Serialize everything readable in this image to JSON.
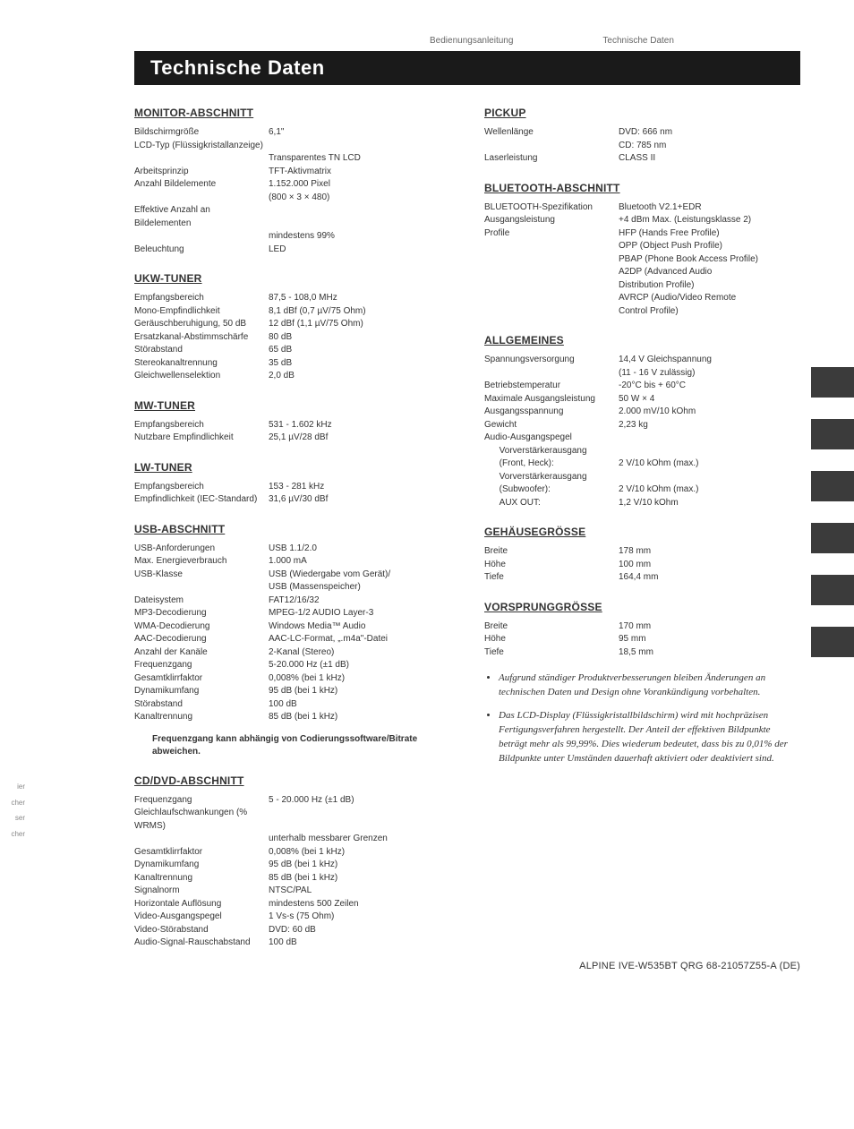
{
  "header": {
    "left": "Bedienungsanleitung",
    "right": "Technische Daten"
  },
  "title": "Technische Daten",
  "footer": "ALPINE IVE-W535BT QRG 68-21057Z55-A (DE)",
  "left_clips": [
    "ier",
    "cher",
    "ser",
    "cher"
  ],
  "left_column": [
    {
      "heading": "MONITOR-ABSCHNITT",
      "rows": [
        {
          "l": "Bildschirmgröße",
          "v": "6,1\""
        },
        {
          "l": "LCD-Typ (Flüssigkristallanzeige)",
          "v": ""
        },
        {
          "l": "",
          "v": "Transparentes TN LCD"
        },
        {
          "l": "Arbeitsprinzip",
          "v": "TFT-Aktivmatrix"
        },
        {
          "l": "Anzahl Bildelemente",
          "v": "1.152.000 Pixel"
        },
        {
          "l": "",
          "v": "(800 × 3 × 480)"
        },
        {
          "l": "Effektive Anzahl an Bildelementen",
          "v": ""
        },
        {
          "l": "",
          "v": "mindestens 99%"
        },
        {
          "l": "Beleuchtung",
          "v": "LED"
        }
      ]
    },
    {
      "heading": "UKW-TUNER",
      "rows": [
        {
          "l": "Empfangsbereich",
          "v": "87,5 - 108,0 MHz"
        },
        {
          "l": "Mono-Empfindlichkeit",
          "v": "8,1 dBf (0,7 µV/75 Ohm)"
        },
        {
          "l": "Geräuschberuhigung, 50 dB",
          "v": "12 dBf (1,1 µV/75 Ohm)"
        },
        {
          "l": "Ersatzkanal-Abstimmschärfe",
          "v": "80 dB"
        },
        {
          "l": "Störabstand",
          "v": "65 dB"
        },
        {
          "l": "Stereokanaltrennung",
          "v": "35 dB"
        },
        {
          "l": "Gleichwellenselektion",
          "v": "2,0 dB"
        }
      ]
    },
    {
      "heading": "MW-TUNER",
      "rows": [
        {
          "l": "Empfangsbereich",
          "v": "531 - 1.602 kHz"
        },
        {
          "l": "Nutzbare Empfindlichkeit",
          "v": "25,1 µV/28 dBf"
        }
      ]
    },
    {
      "heading": "LW-TUNER",
      "rows": [
        {
          "l": "Empfangsbereich",
          "v": "153 - 281 kHz"
        },
        {
          "l": "Empfindlichkeit (IEC-Standard)",
          "v": "31,6 µV/30 dBf"
        }
      ]
    },
    {
      "heading": "USB-ABSCHNITT",
      "rows": [
        {
          "l": "USB-Anforderungen",
          "v": "USB 1.1/2.0"
        },
        {
          "l": "Max. Energieverbrauch",
          "v": "1.000 mA"
        },
        {
          "l": "USB-Klasse",
          "v": "USB (Wiedergabe vom Gerät)/"
        },
        {
          "l": "",
          "v": "USB (Massenspeicher)"
        },
        {
          "l": "Dateisystem",
          "v": "FAT12/16/32"
        },
        {
          "l": "MP3-Decodierung",
          "v": "MPEG-1/2 AUDIO Layer-3"
        },
        {
          "l": "WMA-Decodierung",
          "v": "Windows Media™ Audio"
        },
        {
          "l": "AAC-Decodierung",
          "v": "AAC-LC-Format, „.m4a\"-Datei"
        },
        {
          "l": "Anzahl der Kanäle",
          "v": "2-Kanal (Stereo)"
        },
        {
          "l": "Frequenzgang",
          "v": "5-20.000 Hz (±1 dB)"
        },
        {
          "l": "Gesamtklirrfaktor",
          "v": "0,008% (bei 1 kHz)"
        },
        {
          "l": "Dynamikumfang",
          "v": "95 dB (bei 1 kHz)"
        },
        {
          "l": "Störabstand",
          "v": "100 dB"
        },
        {
          "l": "Kanaltrennung",
          "v": "85 dB (bei 1 kHz)"
        }
      ],
      "note": "Frequenzgang kann abhängig von Codierungssoftware/Bitrate abweichen."
    },
    {
      "heading": "CD/DVD-ABSCHNITT",
      "rows": [
        {
          "l": "Frequenzgang",
          "v": "5 - 20.000 Hz (±1 dB)"
        },
        {
          "l": "Gleichlaufschwankungen (% WRMS)",
          "v": ""
        },
        {
          "l": "",
          "v": "unterhalb messbarer Grenzen"
        },
        {
          "l": "Gesamtklirrfaktor",
          "v": "0,008% (bei 1 kHz)"
        },
        {
          "l": "Dynamikumfang",
          "v": "95 dB (bei 1 kHz)"
        },
        {
          "l": "Kanaltrennung",
          "v": "85 dB (bei 1 kHz)"
        },
        {
          "l": "Signalnorm",
          "v": "NTSC/PAL"
        },
        {
          "l": "Horizontale Auflösung",
          "v": "mindestens 500 Zeilen"
        },
        {
          "l": "Video-Ausgangspegel",
          "v": "1 Vs-s (75 Ohm)"
        },
        {
          "l": "Video-Störabstand",
          "v": "DVD: 60 dB"
        },
        {
          "l": "Audio-Signal-Rauschabstand",
          "v": "100 dB"
        }
      ]
    }
  ],
  "right_column": [
    {
      "heading": "PICKUP",
      "rows": [
        {
          "l": "Wellenlänge",
          "v": "DVD: 666 nm"
        },
        {
          "l": "",
          "v": "CD: 785 nm"
        },
        {
          "l": "Laserleistung",
          "v": "CLASS II"
        }
      ]
    },
    {
      "heading": "BLUETOOTH-ABSCHNITT",
      "rows": [
        {
          "l": "BLUETOOTH-Spezifikation",
          "v": "Bluetooth V2.1+EDR"
        },
        {
          "l": "Ausgangsleistung",
          "v": "+4 dBm Max. (Leistungsklasse 2)"
        },
        {
          "l": "Profile",
          "v": "HFP (Hands Free Profile)"
        },
        {
          "l": "",
          "v": "OPP (Object Push Profile)"
        },
        {
          "l": "",
          "v": "PBAP (Phone Book Access Profile)"
        },
        {
          "l": "",
          "v": "A2DP (Advanced Audio"
        },
        {
          "l": "",
          "v": "Distribution Profile)"
        },
        {
          "l": "",
          "v": "AVRCP (Audio/Video Remote"
        },
        {
          "l": "",
          "v": "Control Profile)"
        }
      ]
    },
    {
      "heading": "ALLGEMEINES",
      "rows": [
        {
          "l": "Spannungsversorgung",
          "v": "14,4 V Gleichspannung"
        },
        {
          "l": "",
          "v": "(11 - 16 V zulässig)"
        },
        {
          "l": "Betriebstemperatur",
          "v": "-20°C bis + 60°C"
        },
        {
          "l": "Maximale Ausgangsleistung",
          "v": "50 W × 4"
        },
        {
          "l": "Ausgangsspannung",
          "v": "2.000 mV/10 kOhm"
        },
        {
          "l": "Gewicht",
          "v": "2,23 kg"
        },
        {
          "l": "Audio-Ausgangspegel",
          "v": ""
        },
        {
          "l": "   Vorverstärkerausgang",
          "v": ""
        },
        {
          "l": "   (Front, Heck):",
          "v": "2 V/10 kOhm (max.)"
        },
        {
          "l": "   Vorverstärkerausgang",
          "v": ""
        },
        {
          "l": "   (Subwoofer):",
          "v": "2 V/10 kOhm (max.)"
        },
        {
          "l": "   AUX OUT:",
          "v": "1,2 V/10 kOhm"
        }
      ]
    },
    {
      "heading": "GEHÄUSEGRÖSSE",
      "rows": [
        {
          "l": "Breite",
          "v": "178 mm"
        },
        {
          "l": "Höhe",
          "v": "100 mm"
        },
        {
          "l": "Tiefe",
          "v": "164,4 mm"
        }
      ]
    },
    {
      "heading": "VORSPRUNGGRÖSSE",
      "rows": [
        {
          "l": "Breite",
          "v": "170 mm"
        },
        {
          "l": "Höhe",
          "v": "95 mm"
        },
        {
          "l": "Tiefe",
          "v": "18,5 mm"
        }
      ]
    }
  ],
  "footnotes": [
    "Aufgrund ständiger Produktverbesserungen bleiben Änderungen an technischen Daten und Design ohne Vorankündigung vorbehalten.",
    "Das LCD-Display (Flüssigkristallbildschirm) wird mit hochpräzisen Fertigungsverfahren hergestellt. Der Anteil der effektiven Bildpunkte beträgt mehr als 99,99%. Dies wiederum bedeutet, dass bis zu 0,01% der Bildpunkte unter Umständen dauerhaft aktiviert oder deaktiviert sind."
  ]
}
